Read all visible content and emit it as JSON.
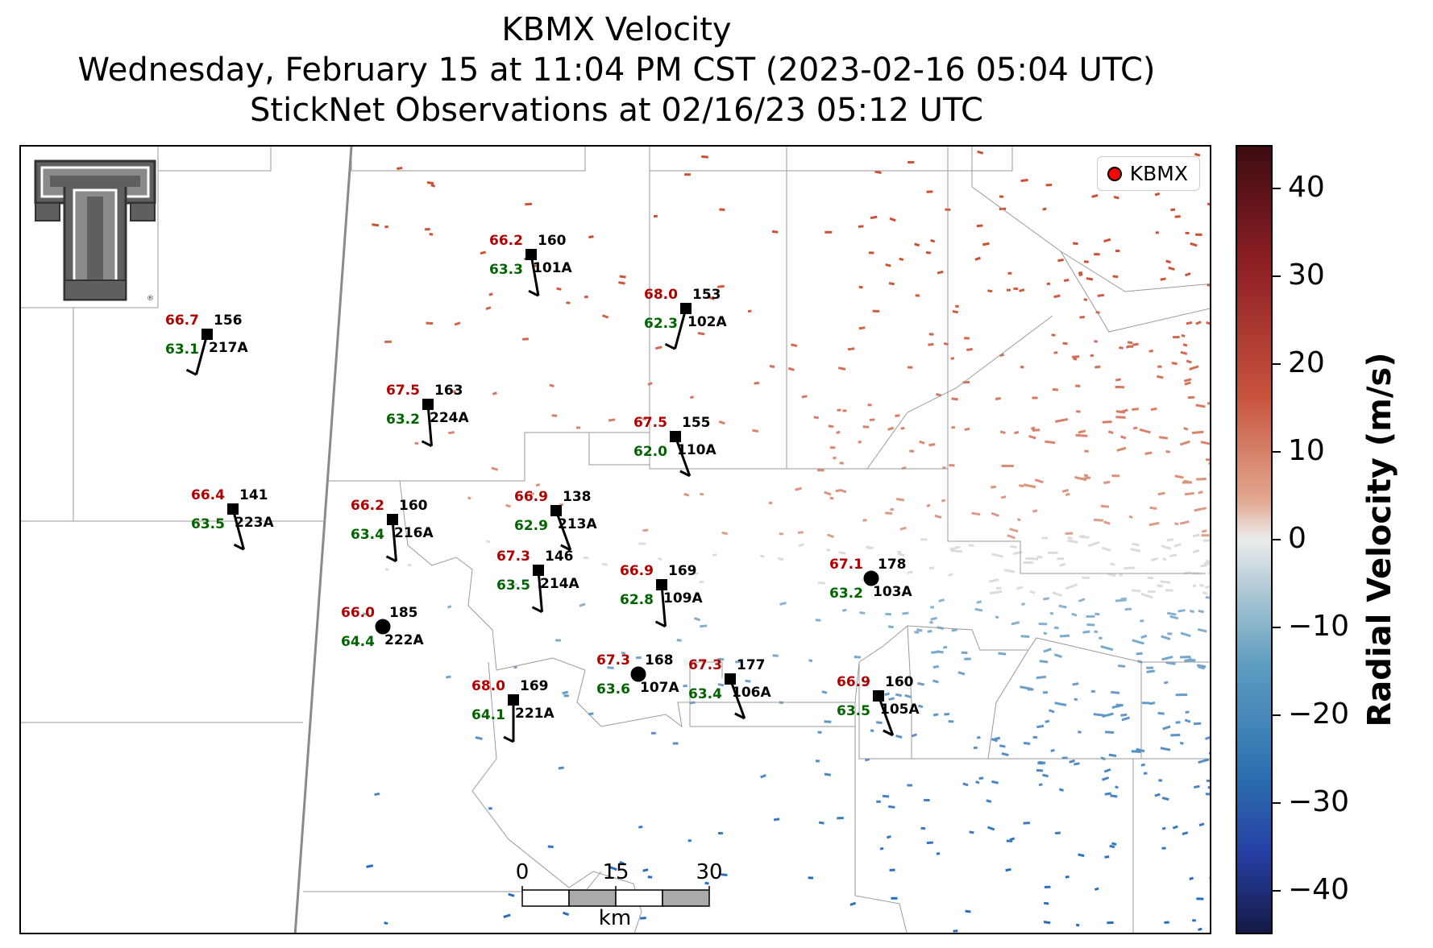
{
  "title": {
    "line1": "KBMX Velocity",
    "line2": "Wednesday, February 15 at 11:04 PM CST (2023-02-16 05:04 UTC)",
    "line3": "StickNet Observations at 02/16/23 05:12 UTC"
  },
  "legend": {
    "label": "KBMX",
    "marker_color": "#ff0000"
  },
  "logo": {
    "name": "texas-tech-double-t-logo",
    "mark": "®"
  },
  "colorbar": {
    "title": "Radial Velocity (m/s)",
    "range": [
      -45,
      45
    ],
    "ticks": [
      "40",
      "30",
      "20",
      "10",
      "0",
      "−10",
      "−20",
      "−30",
      "−40"
    ],
    "tick_values": [
      40,
      30,
      20,
      10,
      0,
      -10,
      -20,
      -30,
      -40
    ],
    "colors": {
      "max": "#3d0c12",
      "positive": "#c8543e",
      "zero": "#ececec",
      "negative": "#2b6fb0",
      "min": "#141a45"
    }
  },
  "scale_bar": {
    "ticks": [
      "0",
      "15",
      "30"
    ],
    "unit": "km"
  },
  "colors": {
    "temperature": "#b00000",
    "dewpoint": "#006400",
    "pressure": "#000000",
    "station_id": "#000000"
  },
  "stations": [
    {
      "id": "101A",
      "temp": "66.2",
      "dew": "63.3",
      "pres": "160",
      "marker": "square",
      "barb_dir": 170
    },
    {
      "id": "102A",
      "temp": "68.0",
      "dew": "62.3",
      "pres": "153",
      "marker": "square",
      "barb_dir": 195
    },
    {
      "id": "217A",
      "temp": "66.7",
      "dew": "63.1",
      "pres": "156",
      "marker": "square",
      "barb_dir": 195
    },
    {
      "id": "224A",
      "temp": "67.5",
      "dew": "63.2",
      "pres": "163",
      "marker": "square",
      "barb_dir": 175
    },
    {
      "id": "110A",
      "temp": "67.5",
      "dew": "62.0",
      "pres": "155",
      "marker": "square",
      "barb_dir": 160
    },
    {
      "id": "223A",
      "temp": "66.4",
      "dew": "63.5",
      "pres": "141",
      "marker": "square",
      "barb_dir": 165
    },
    {
      "id": "216A",
      "temp": "66.2",
      "dew": "63.4",
      "pres": "160",
      "marker": "square",
      "barb_dir": 175
    },
    {
      "id": "213A",
      "temp": "66.9",
      "dew": "62.9",
      "pres": "138",
      "marker": "square",
      "barb_dir": 160
    },
    {
      "id": "214A",
      "temp": "67.3",
      "dew": "63.5",
      "pres": "146",
      "marker": "square",
      "barb_dir": 175
    },
    {
      "id": "109A",
      "temp": "66.9",
      "dew": "62.8",
      "pres": "169",
      "marker": "square",
      "barb_dir": 175
    },
    {
      "id": "103A",
      "temp": "67.1",
      "dew": "63.2",
      "pres": "178",
      "marker": "circle",
      "barb_dir": null
    },
    {
      "id": "222A",
      "temp": "66.0",
      "dew": "64.4",
      "pres": "185",
      "marker": "circle",
      "barb_dir": null
    },
    {
      "id": "107A",
      "temp": "67.3",
      "dew": "63.6",
      "pres": "168",
      "marker": "circle",
      "barb_dir": null
    },
    {
      "id": "106A",
      "temp": "67.3",
      "dew": "63.4",
      "pres": "177",
      "marker": "square",
      "barb_dir": 160
    },
    {
      "id": "221A",
      "temp": "68.0",
      "dew": "64.1",
      "pres": "169",
      "marker": "square",
      "barb_dir": 180
    },
    {
      "id": "105A",
      "temp": "66.9",
      "dew": "63.5",
      "pres": "160",
      "marker": "square",
      "barb_dir": 160
    }
  ]
}
